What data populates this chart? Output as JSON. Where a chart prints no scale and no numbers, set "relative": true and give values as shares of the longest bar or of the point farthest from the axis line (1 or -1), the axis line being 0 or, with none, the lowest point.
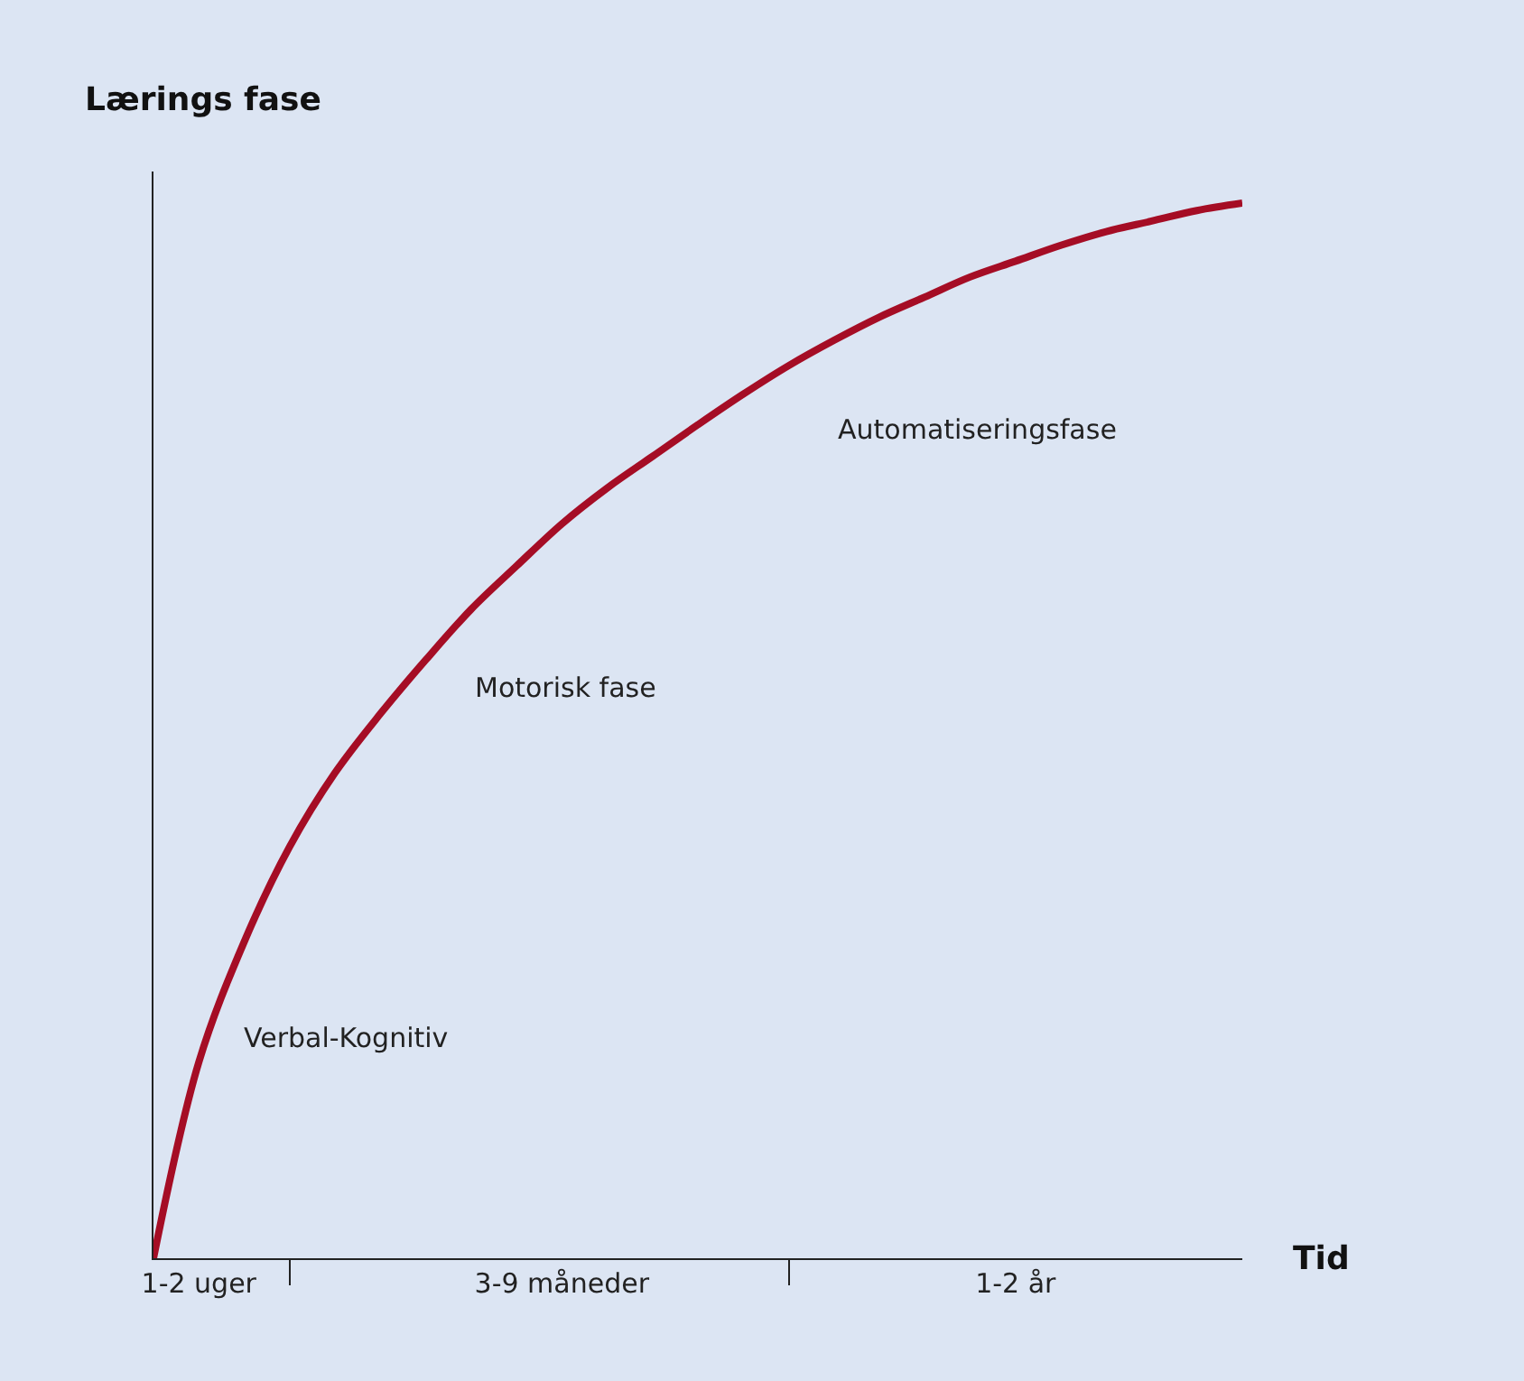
{
  "chart_data": {
    "type": "line",
    "relative": true,
    "ylabel": "Lærings fase",
    "xlabel": "Tid",
    "categories": [
      null,
      "1-2 uger",
      null,
      null,
      null,
      null,
      null,
      null,
      null,
      "3-9 måneder",
      null,
      null,
      null,
      null,
      null,
      null,
      null,
      null,
      null,
      "1-2 år",
      null,
      null,
      null,
      null,
      null
    ],
    "series": [
      {
        "color": "#a50d25",
        "values": [
          0,
          0.186,
          0.3,
          0.39,
          0.46,
          0.516,
          0.567,
          0.615,
          0.656,
          0.696,
          0.73,
          0.76,
          0.79,
          0.819,
          0.846,
          0.87,
          0.892,
          0.911,
          0.93,
          0.945,
          0.96,
          0.973,
          0.983,
          0.993,
          1
        ]
      }
    ],
    "annotations": [
      "Verbal-Kognitiv",
      "Motorisk fase",
      "Automatiseringsfase"
    ],
    "grid": false,
    "marker": "none",
    "line_style": "solid"
  }
}
